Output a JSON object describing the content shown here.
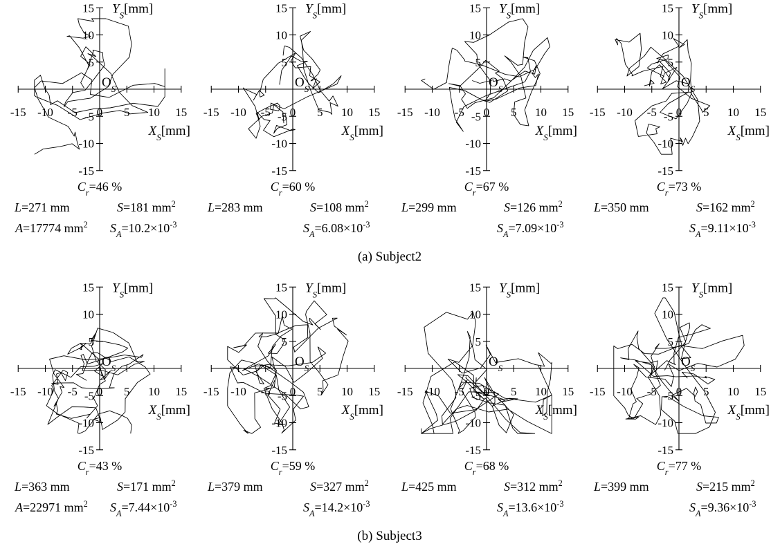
{
  "figure": {
    "captions": [
      "(a) Subject2",
      "(b) Subject3"
    ]
  },
  "chart_data": [
    {
      "type": "line",
      "group": "(a) Subject2",
      "panel": 1,
      "xlabel": "XS[mm]",
      "ylabel": "YS[mm]",
      "origin_label": "OS",
      "xlim": [
        -15,
        15
      ],
      "ylim": [
        -15,
        15
      ],
      "x_ticks": [
        "-15",
        "-10",
        "-5",
        "0",
        "5",
        "10",
        "15"
      ],
      "y_ticks": [
        "15",
        "10",
        "5",
        "0",
        "-5",
        "-10",
        "-15"
      ],
      "stats": {
        "Cr": "46 %",
        "L": "271 mm",
        "S": "181 mm2",
        "A": "17774 mm2",
        "SA": "10.2×10-3"
      }
    },
    {
      "type": "line",
      "group": "(a) Subject2",
      "panel": 2,
      "xlabel": "XS[mm]",
      "ylabel": "YS[mm]",
      "origin_label": "OS",
      "xlim": [
        -15,
        15
      ],
      "ylim": [
        -15,
        15
      ],
      "x_ticks": [
        "-15",
        "-10",
        "-5",
        "0",
        "5",
        "10",
        "15"
      ],
      "y_ticks": [
        "15",
        "10",
        "5",
        "0",
        "-5",
        "-10",
        "-15"
      ],
      "stats": {
        "Cr": "60 %",
        "L": "283 mm",
        "S": "108 mm2",
        "SA": "6.08×10-3"
      }
    },
    {
      "type": "line",
      "group": "(a) Subject2",
      "panel": 3,
      "xlabel": "XS[mm]",
      "ylabel": "YS[mm]",
      "origin_label": "OS",
      "xlim": [
        -15,
        15
      ],
      "ylim": [
        -15,
        15
      ],
      "x_ticks": [
        "-15",
        "-10",
        "-5",
        "0",
        "5",
        "10",
        "15"
      ],
      "y_ticks": [
        "15",
        "10",
        "5",
        "0",
        "-5",
        "-10",
        "-15"
      ],
      "stats": {
        "Cr": "67 %",
        "L": "299 mm",
        "S": "126 mm2",
        "SA": "7.09×10-3"
      }
    },
    {
      "type": "line",
      "group": "(a) Subject2",
      "panel": 4,
      "xlabel": "XS[mm]",
      "ylabel": "YS[mm]",
      "origin_label": "OS",
      "xlim": [
        -15,
        15
      ],
      "ylim": [
        -15,
        15
      ],
      "x_ticks": [
        "-15",
        "-10",
        "-5",
        "0",
        "5",
        "10",
        "15"
      ],
      "y_ticks": [
        "15",
        "10",
        "5",
        "0",
        "-5",
        "-10",
        "-15"
      ],
      "stats": {
        "Cr": "73 %",
        "L": "350 mm",
        "S": "162 mm2",
        "SA": "9.11×10-3"
      }
    },
    {
      "type": "line",
      "group": "(b) Subject3",
      "panel": 1,
      "xlabel": "XS[mm]",
      "ylabel": "YS[mm]",
      "origin_label": "OS",
      "xlim": [
        -15,
        15
      ],
      "ylim": [
        -15,
        15
      ],
      "x_ticks": [
        "-15",
        "-10",
        "-5",
        "0",
        "5",
        "10",
        "15"
      ],
      "y_ticks": [
        "15",
        "10",
        "5",
        "0",
        "-5",
        "-10",
        "-15"
      ],
      "stats": {
        "Cr": "43 %",
        "L": "363 mm",
        "S": "171 mm2",
        "A": "22971 mm2",
        "SA": "7.44×10-3"
      }
    },
    {
      "type": "line",
      "group": "(b) Subject3",
      "panel": 2,
      "xlabel": "XS[mm]",
      "ylabel": "YS[mm]",
      "origin_label": "OS",
      "xlim": [
        -15,
        15
      ],
      "ylim": [
        -15,
        15
      ],
      "x_ticks": [
        "-15",
        "-10",
        "-5",
        "0",
        "5",
        "10",
        "15"
      ],
      "y_ticks": [
        "15",
        "10",
        "5",
        "0",
        "-5",
        "-10",
        "-15"
      ],
      "stats": {
        "Cr": "59 %",
        "L": "379 mm",
        "S": "327 mm2",
        "SA": "14.2×10-3"
      }
    },
    {
      "type": "line",
      "group": "(b) Subject3",
      "panel": 3,
      "xlabel": "XS[mm]",
      "ylabel": "YS[mm]",
      "origin_label": "OS",
      "xlim": [
        -15,
        15
      ],
      "ylim": [
        -15,
        15
      ],
      "x_ticks": [
        "-15",
        "-10",
        "-5",
        "0",
        "5",
        "10",
        "15"
      ],
      "y_ticks": [
        "15",
        "10",
        "5",
        "0",
        "-5",
        "-10",
        "-15"
      ],
      "stats": {
        "Cr": "68 %",
        "L": "425 mm",
        "S": "312 mm2",
        "SA": "13.6×10-3"
      }
    },
    {
      "type": "line",
      "group": "(b) Subject3",
      "panel": 4,
      "xlabel": "XS[mm]",
      "ylabel": "YS[mm]",
      "origin_label": "OS",
      "xlim": [
        -15,
        15
      ],
      "ylim": [
        -15,
        15
      ],
      "x_ticks": [
        "-15",
        "-10",
        "-5",
        "0",
        "5",
        "10",
        "15"
      ],
      "y_ticks": [
        "15",
        "10",
        "5",
        "0",
        "-5",
        "-10",
        "-15"
      ],
      "stats": {
        "Cr": "77 %",
        "L": "399 mm",
        "S": "215 mm2",
        "SA": "9.36×10-3"
      }
    }
  ]
}
